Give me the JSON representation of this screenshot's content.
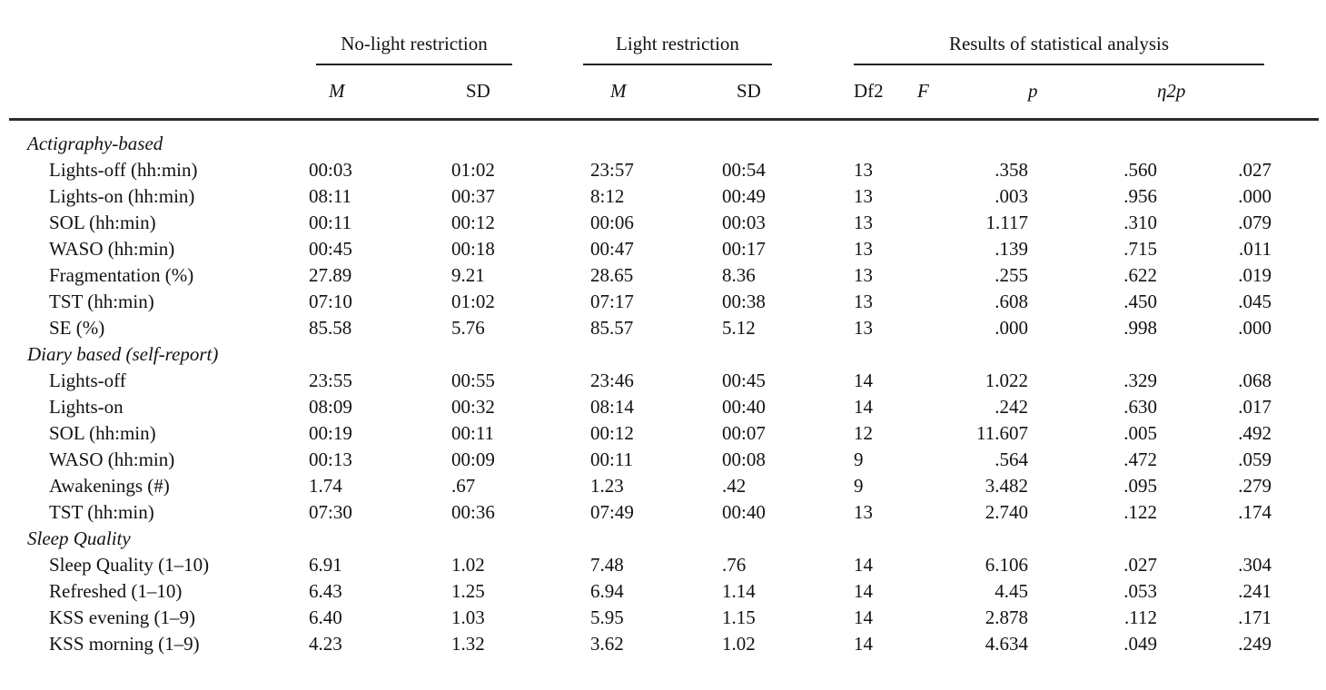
{
  "table": {
    "groups": [
      {
        "label": "No-light restriction"
      },
      {
        "label": "Light restriction"
      },
      {
        "label": "Results of statistical analysis"
      }
    ],
    "columns": [
      "M",
      "SD",
      "M",
      "SD",
      "Df2",
      "F",
      "p",
      "η2p"
    ],
    "sections": [
      {
        "title": "Actigraphy-based",
        "rows": [
          {
            "label": "Lights-off (hh:min)",
            "values": [
              "00:03",
              "01:02",
              "23:57",
              "00:54",
              "13",
              ".358",
              ".560",
              ".027"
            ]
          },
          {
            "label": "Lights-on (hh:min)",
            "values": [
              "08:11",
              "00:37",
              "8:12",
              "00:49",
              "13",
              ".003",
              ".956",
              ".000"
            ]
          },
          {
            "label": "SOL (hh:min)",
            "values": [
              "00:11",
              "00:12",
              "00:06",
              "00:03",
              "13",
              "1.117",
              ".310",
              ".079"
            ]
          },
          {
            "label": "WASO (hh:min)",
            "values": [
              "00:45",
              "00:18",
              "00:47",
              "00:17",
              "13",
              ".139",
              ".715",
              ".011"
            ]
          },
          {
            "label": "Fragmentation (%)",
            "values": [
              "27.89",
              "9.21",
              "28.65",
              "8.36",
              "13",
              ".255",
              ".622",
              ".019"
            ]
          },
          {
            "label": "TST (hh:min)",
            "values": [
              "07:10",
              "01:02",
              "07:17",
              "00:38",
              "13",
              ".608",
              ".450",
              ".045"
            ]
          },
          {
            "label": "SE (%)",
            "values": [
              "85.58",
              "5.76",
              "85.57",
              "5.12",
              "13",
              ".000",
              ".998",
              ".000"
            ]
          }
        ]
      },
      {
        "title": "Diary based (self-report)",
        "rows": [
          {
            "label": "Lights-off",
            "values": [
              "23:55",
              "00:55",
              "23:46",
              "00:45",
              "14",
              "1.022",
              ".329",
              ".068"
            ]
          },
          {
            "label": "Lights-on",
            "values": [
              "08:09",
              "00:32",
              "08:14",
              "00:40",
              "14",
              ".242",
              ".630",
              ".017"
            ]
          },
          {
            "label": "SOL (hh:min)",
            "values": [
              "00:19",
              "00:11",
              "00:12",
              "00:07",
              "12",
              "11.607",
              ".005",
              ".492"
            ]
          },
          {
            "label": "WASO (hh:min)",
            "values": [
              "00:13",
              "00:09",
              "00:11",
              "00:08",
              "9",
              ".564",
              ".472",
              ".059"
            ]
          },
          {
            "label": "Awakenings (#)",
            "values": [
              "1.74",
              ".67",
              "1.23",
              ".42",
              "9",
              "3.482",
              ".095",
              ".279"
            ]
          },
          {
            "label": "TST (hh:min)",
            "values": [
              "07:30",
              "00:36",
              "07:49",
              "00:40",
              "13",
              "2.740",
              ".122",
              ".174"
            ]
          }
        ]
      },
      {
        "title": "Sleep Quality",
        "rows": [
          {
            "label": "Sleep Quality (1–10)",
            "values": [
              "6.91",
              "1.02",
              "7.48",
              ".76",
              "14",
              "6.106",
              ".027",
              ".304"
            ]
          },
          {
            "label": "Refreshed (1–10)",
            "values": [
              "6.43",
              "1.25",
              "6.94",
              "1.14",
              "14",
              "4.45",
              ".053",
              ".241"
            ]
          },
          {
            "label": "KSS evening (1–9)",
            "values": [
              "6.40",
              "1.03",
              "5.95",
              "1.15",
              "14",
              "2.878",
              ".112",
              ".171"
            ]
          },
          {
            "label": "KSS morning (1–9)",
            "values": [
              "4.23",
              "1.32",
              "3.62",
              "1.02",
              "14",
              "4.634",
              ".049",
              ".249"
            ]
          }
        ]
      }
    ]
  }
}
